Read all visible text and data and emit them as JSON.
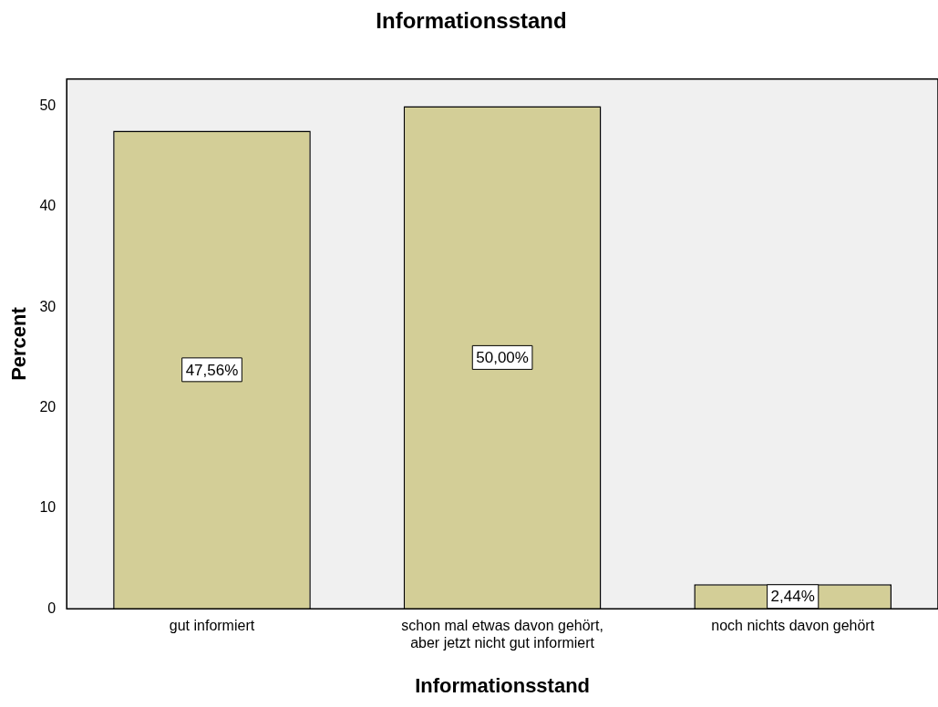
{
  "chart_data": {
    "type": "bar",
    "title": "Informationsstand",
    "xlabel": "Informationsstand",
    "ylabel": "Percent",
    "categories": [
      "gut informiert",
      "schon mal etwas davon gehört,\naber jetzt nicht gut informiert",
      "noch nichts davon gehört"
    ],
    "values": [
      47.56,
      50.0,
      2.44
    ],
    "color": "#d3ce97",
    "value_labels": [
      "47,56%",
      "50,00%",
      "2,44%"
    ],
    "ylim": [
      0,
      52.7
    ],
    "yticks": [
      0,
      10,
      20,
      30,
      40,
      50
    ],
    "grid": false,
    "legend": false
  }
}
